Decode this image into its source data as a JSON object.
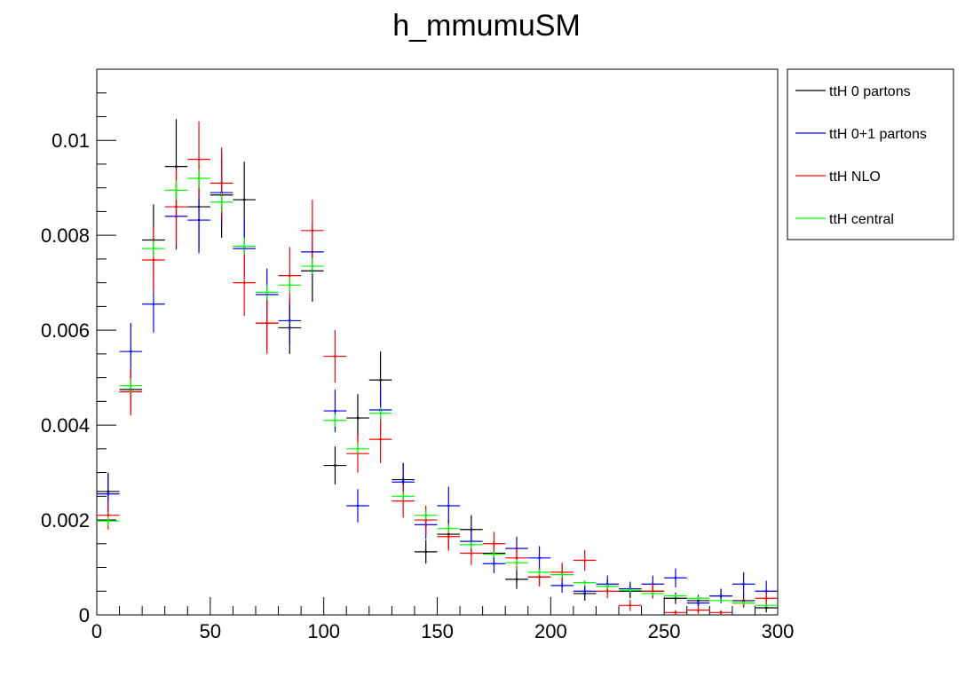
{
  "chart_data": {
    "type": "scatter",
    "title": "h_mmumuSM",
    "xlabel": "",
    "ylabel": "",
    "xlim": [
      0,
      300
    ],
    "ylim": [
      0,
      0.0115
    ],
    "x_ticks": [
      "0",
      "50",
      "100",
      "150",
      "200",
      "250",
      "300"
    ],
    "y_ticks": [
      "0",
      "0.002",
      "0.004",
      "0.006",
      "0.008",
      "0.01"
    ],
    "grid": false,
    "legend_position": "top-right, outside plot",
    "bin_centers": [
      5,
      15,
      25,
      35,
      45,
      55,
      65,
      75,
      85,
      95,
      105,
      115,
      125,
      135,
      145,
      155,
      165,
      175,
      185,
      195,
      205,
      215,
      225,
      235,
      245,
      255,
      265,
      275,
      285,
      295
    ],
    "bin_width": 10,
    "series": [
      {
        "name": "ttH 0 partons",
        "color": "#000000",
        "values": [
          0.0026,
          0.00475,
          0.0079,
          0.00945,
          0.0086,
          0.00885,
          0.00875,
          0.00615,
          0.00605,
          0.00725,
          0.00315,
          0.00415,
          0.00495,
          0.00285,
          0.00133,
          0.0017,
          0.0018,
          0.0013,
          0.00075,
          0.0008,
          0.00085,
          0.00045,
          0.0006,
          0.0005,
          0.0005,
          0.00035,
          0.0003,
          0.0004,
          0.0003,
          0.00015
        ],
        "errors": [
          0.0004,
          0.00045,
          0.00075,
          0.001,
          0.0009,
          0.0009,
          0.0008,
          0.00055,
          0.00055,
          0.00065,
          0.0004,
          0.0005,
          0.0006,
          0.00035,
          0.00025,
          0.0003,
          0.0003,
          0.00025,
          0.0002,
          0.0002,
          0.0002,
          0.00015,
          0.00015,
          0.00015,
          0.00015,
          0.00012,
          0.00012,
          0.00015,
          0.00012,
          0.0001
        ]
      },
      {
        "name": "ttH 0+1 partons",
        "color": "#0000ff",
        "values": [
          0.00255,
          0.00555,
          0.00655,
          0.0084,
          0.00832,
          0.0089,
          0.00772,
          0.00675,
          0.0062,
          0.00765,
          0.0043,
          0.0023,
          0.00432,
          0.0028,
          0.0019,
          0.0023,
          0.00155,
          0.00108,
          0.0014,
          0.0012,
          0.00062,
          0.0005,
          0.00065,
          0.00055,
          0.00065,
          0.00078,
          0.00025,
          0.0004,
          0.00065,
          0.0005
        ],
        "errors": [
          0.0004,
          0.0006,
          0.0006,
          0.0007,
          0.0007,
          0.0007,
          0.0006,
          0.00055,
          0.0005,
          0.0006,
          0.00045,
          0.00035,
          0.0005,
          0.0004,
          0.0003,
          0.0004,
          0.00025,
          0.0002,
          0.00025,
          0.00025,
          0.00015,
          0.00012,
          0.00018,
          0.00015,
          0.00018,
          0.0002,
          0.0001,
          0.00015,
          0.00025,
          0.00022
        ]
      },
      {
        "name": "ttH NLO",
        "color": "#ff0000",
        "values": [
          0.0021,
          0.0047,
          0.00748,
          0.0086,
          0.0096,
          0.0091,
          0.007,
          0.00615,
          0.00715,
          0.0081,
          0.00545,
          0.0034,
          0.0037,
          0.0024,
          0.002,
          0.00165,
          0.0013,
          0.0015,
          0.0012,
          0.0008,
          0.0009,
          0.00115,
          0.0005,
          0.0002,
          0.0005,
          5e-05,
          0.0001,
          5e-05,
          0.00025,
          0.00035
        ],
        "errors": [
          0.0003,
          0.0005,
          0.0007,
          0.0008,
          0.0008,
          0.00075,
          0.0007,
          0.00065,
          0.0006,
          0.00065,
          0.00055,
          0.0004,
          0.0005,
          0.00035,
          0.0003,
          0.0003,
          0.00025,
          0.00025,
          0.00025,
          0.0002,
          0.0002,
          0.00022,
          0.00015,
          0.00012,
          0.00015,
          5e-05,
          8e-05,
          5e-05,
          0.0001,
          0.00012
        ]
      },
      {
        "name": "ttH central",
        "color": "#00ff00",
        "values": [
          0.00198,
          0.00483,
          0.00772,
          0.00895,
          0.0092,
          0.0087,
          0.00777,
          0.0068,
          0.00695,
          0.00735,
          0.0041,
          0.0035,
          0.00425,
          0.0025,
          0.0021,
          0.00182,
          0.00148,
          0.00128,
          0.0011,
          0.0009,
          0.00085,
          0.00068,
          0.0006,
          0.00052,
          0.00045,
          0.0004,
          0.00035,
          0.0003,
          0.00025,
          0.0002
        ],
        "errors": [
          0.0001,
          0.00015,
          0.00018,
          0.0002,
          0.0002,
          0.0002,
          0.00018,
          0.00016,
          0.00016,
          0.00017,
          0.00013,
          0.00012,
          0.00013,
          0.0001,
          0.0001,
          9e-05,
          8e-05,
          7e-05,
          7e-05,
          6e-05,
          6e-05,
          5e-05,
          5e-05,
          5e-05,
          4e-05,
          4e-05,
          4e-05,
          3e-05,
          3e-05,
          3e-05
        ]
      }
    ]
  }
}
